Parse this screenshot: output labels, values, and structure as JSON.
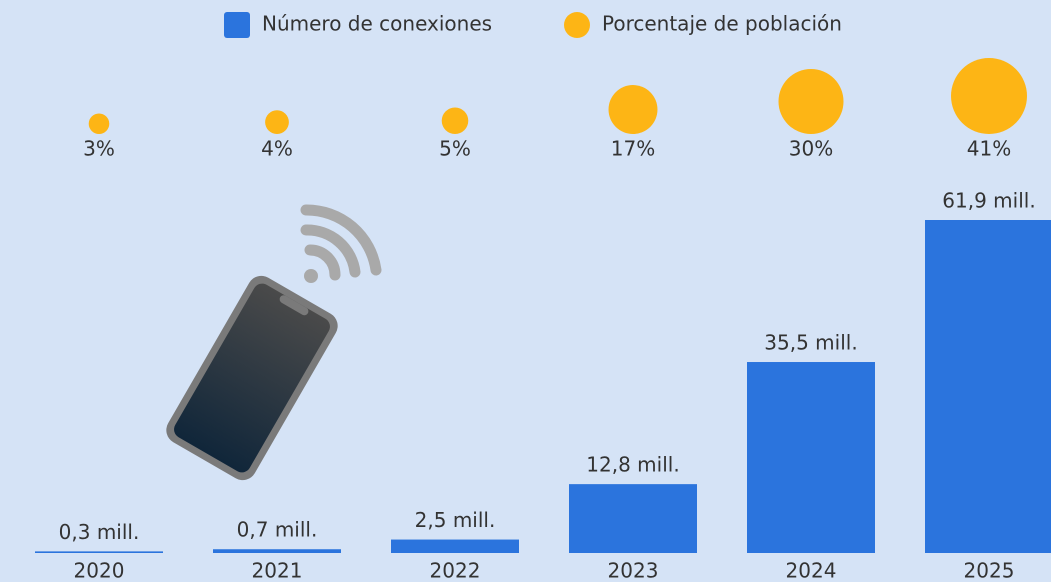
{
  "chart_data": {
    "type": "bar",
    "categories": [
      "2020",
      "2021",
      "2022",
      "2023",
      "2024",
      "2025"
    ],
    "series": [
      {
        "name": "Número de conexiones",
        "type": "bar",
        "color": "#2b74dd",
        "values": [
          0.3,
          0.7,
          2.5,
          12.8,
          35.5,
          61.9
        ],
        "value_labels": [
          "0,3 mill.",
          "0,7 mill.",
          "2,5 mill.",
          "12,8 mill.",
          "35,5 mill.",
          "61,9 mill."
        ]
      },
      {
        "name": "Porcentaje de población",
        "type": "bubble",
        "color": "#fdb515",
        "values": [
          3,
          4,
          5,
          17,
          30,
          41
        ],
        "value_labels": [
          "3%",
          "4%",
          "5%",
          "17%",
          "30%",
          "41%"
        ]
      }
    ]
  }
}
